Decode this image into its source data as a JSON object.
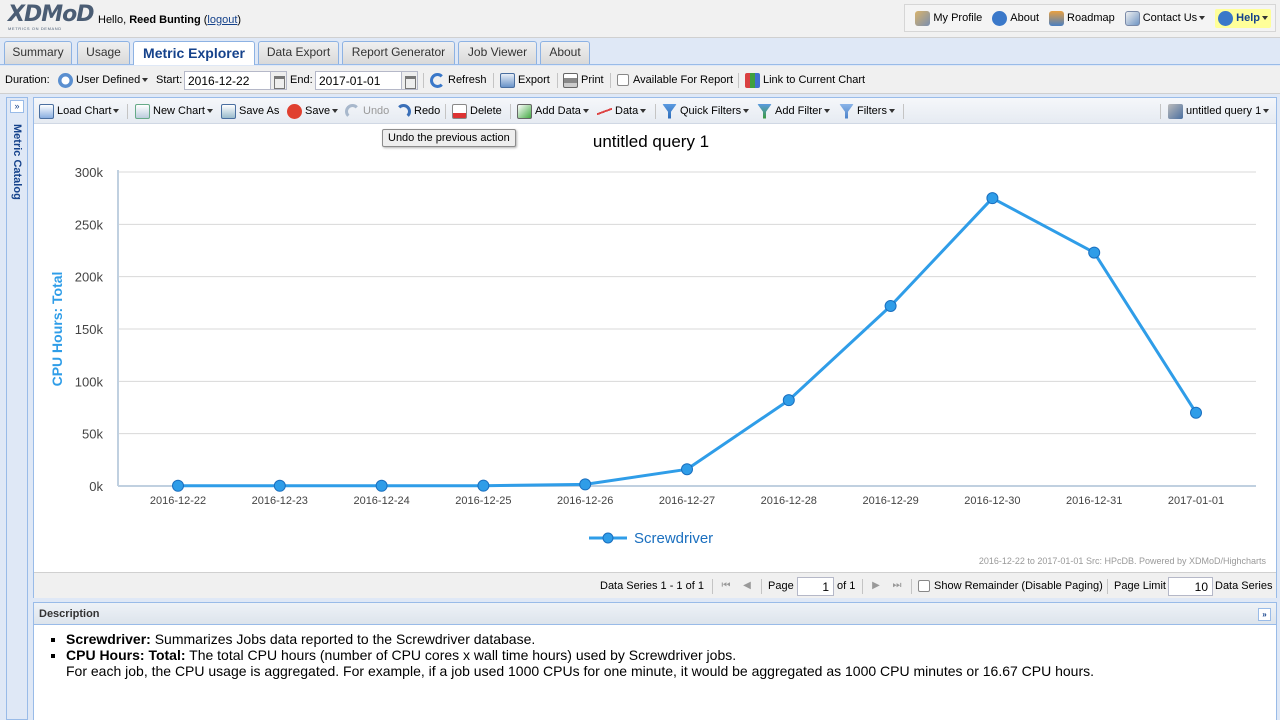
{
  "header": {
    "logo_text": "XDMoD",
    "logo_subtitle": "METRICS ON DEMAND",
    "greeting_prefix": "Hello, ",
    "user_name": "Reed Bunting",
    "logout_label": "logout",
    "links": {
      "my_profile": "My Profile",
      "about": "About",
      "roadmap": "Roadmap",
      "contact_us": "Contact Us",
      "help": "Help"
    }
  },
  "tabs": [
    "Summary",
    "Usage",
    "Metric Explorer",
    "Data Export",
    "Report Generator",
    "Job Viewer",
    "About"
  ],
  "duration_bar": {
    "duration_label": "Duration:",
    "duration_value": "User Defined",
    "start_label": "Start:",
    "start_value": "2016-12-22",
    "end_label": "End:",
    "end_value": "2017-01-01",
    "refresh": "Refresh",
    "export": "Export",
    "print": "Print",
    "available_for_report": "Available For Report",
    "link_to_chart": "Link to Current Chart"
  },
  "catalog": {
    "label": "Metric Catalog"
  },
  "chart_toolbar": {
    "load_chart": "Load Chart",
    "new_chart": "New Chart",
    "save_as": "Save As",
    "save": "Save",
    "undo": "Undo",
    "redo": "Redo",
    "delete": "Delete",
    "add_data": "Add Data",
    "data": "Data",
    "quick_filters": "Quick Filters",
    "add_filter": "Add Filter",
    "filters": "Filters",
    "query_name": "untitled query 1"
  },
  "tooltip": "Undo the previous action",
  "chart_data": {
    "type": "line",
    "title": "untitled query 1",
    "ylabel": "CPU Hours: Total",
    "xlabel": "",
    "categories": [
      "2016-12-22",
      "2016-12-23",
      "2016-12-24",
      "2016-12-25",
      "2016-12-26",
      "2016-12-27",
      "2016-12-28",
      "2016-12-29",
      "2016-12-30",
      "2016-12-31",
      "2017-01-01"
    ],
    "series": [
      {
        "name": "Screwdriver",
        "color": "#2f9de8",
        "values": [
          200,
          200,
          200,
          300,
          1500,
          16000,
          82000,
          172000,
          275000,
          223000,
          70000
        ]
      }
    ],
    "ylim": [
      0,
      300000
    ],
    "yticks": [
      0,
      50000,
      100000,
      150000,
      200000,
      250000,
      300000
    ],
    "ytick_labels": [
      "0k",
      "50k",
      "100k",
      "150k",
      "200k",
      "250k",
      "300k"
    ],
    "grid": true,
    "legend_position": "bottom-center",
    "credits": "2016-12-22 to 2017-01-01 Src: HPcDB. Powered by XDMoD/Highcharts"
  },
  "paging": {
    "series_count": "Data Series 1 - 1 of 1",
    "page_label": "Page",
    "page_value": "1",
    "of_label": "of 1",
    "show_remainder": "Show Remainder (Disable Paging)",
    "page_limit_label": "Page Limit",
    "page_limit_value": "10",
    "data_series_label": "Data Series"
  },
  "description": {
    "title": "Description",
    "items": [
      {
        "term": "Screwdriver:",
        "text": "Summarizes Jobs data reported to the Screwdriver database."
      },
      {
        "term": "CPU Hours: Total:",
        "text": "The total CPU hours (number of CPU cores x wall time hours) used by Screwdriver jobs.",
        "extra": "For each job, the CPU usage is aggregated. For example, if a job used 1000 CPUs for one minute, it would be aggregated as 1000 CPU minutes or 16.67 CPU hours."
      }
    ]
  }
}
